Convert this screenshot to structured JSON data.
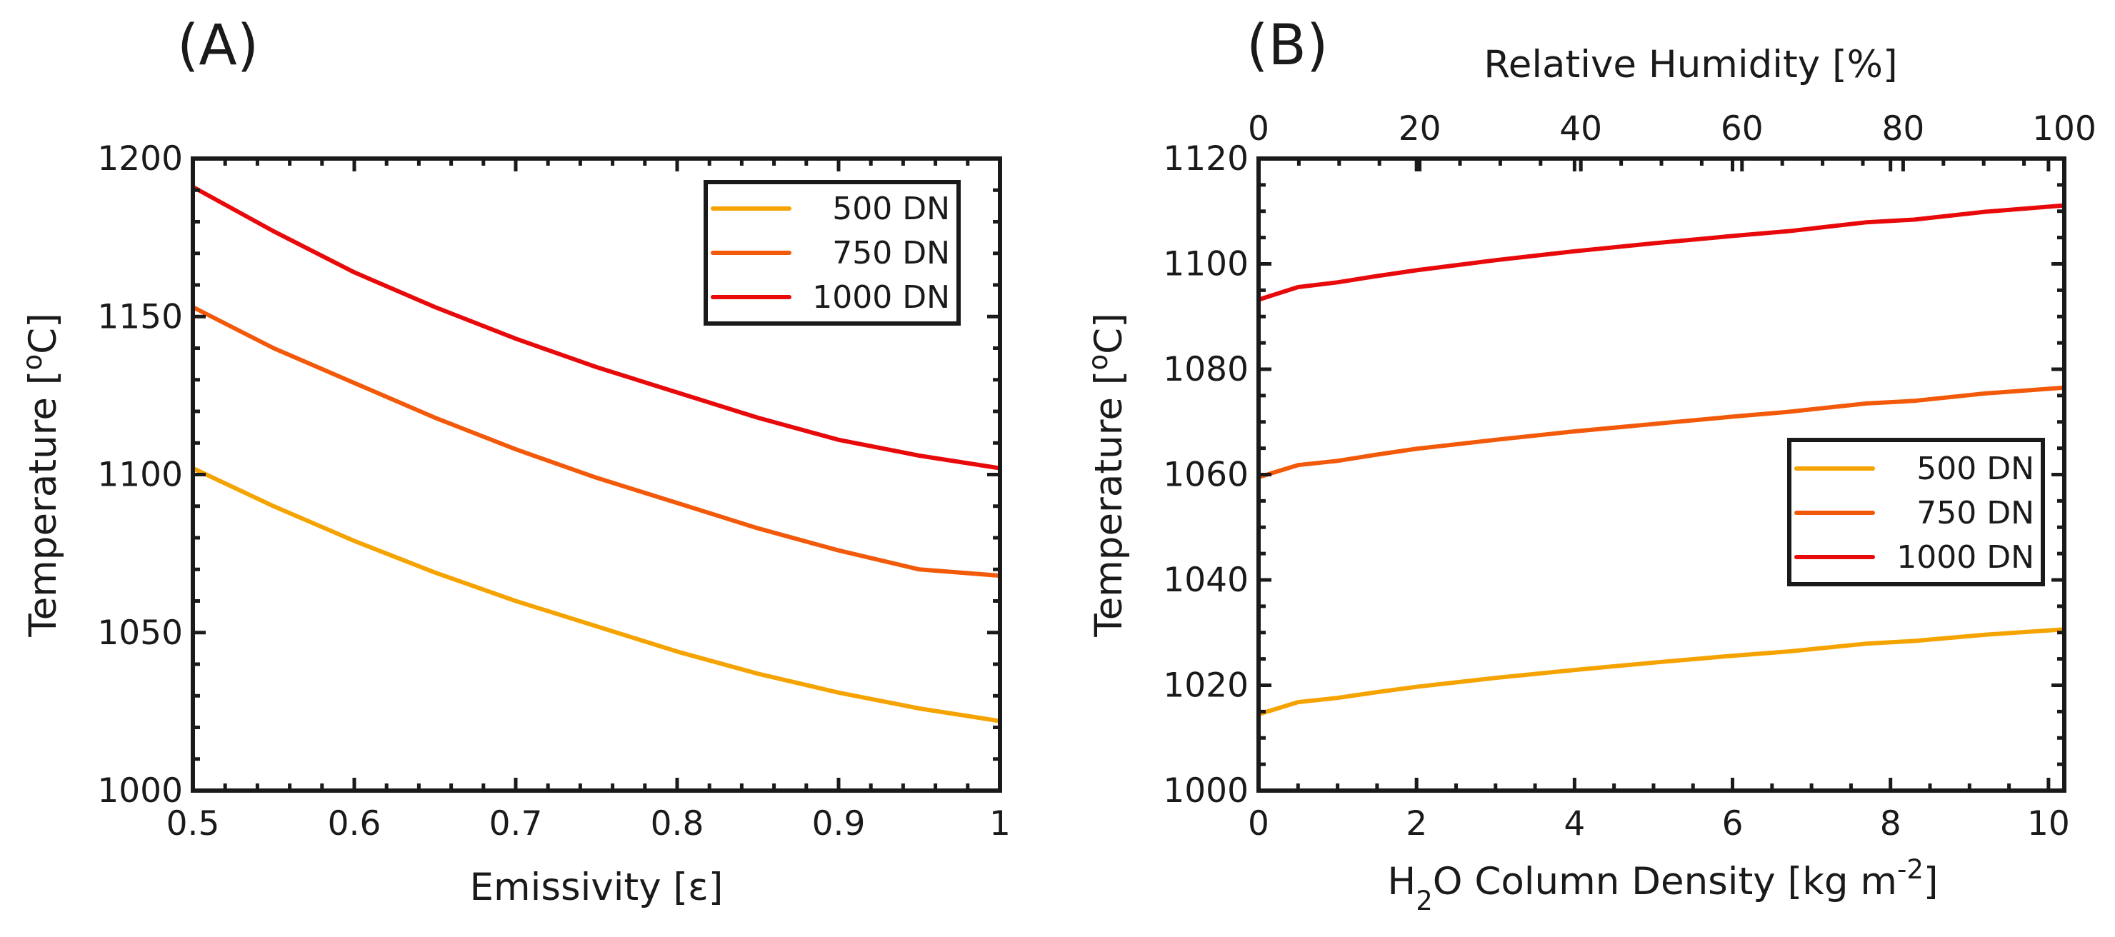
{
  "chart_data": [
    {
      "panel": "(A)",
      "type": "line",
      "xlabel": "Emissivity [ε]",
      "ylabel_parts": [
        "Temperature [",
        "o",
        "C]"
      ],
      "xlim": [
        0.5,
        1
      ],
      "ylim": [
        1000,
        1200
      ],
      "xticks": [
        0.5,
        0.6,
        0.7,
        0.8,
        0.9,
        1
      ],
      "xtick_labels": [
        "0.5",
        "0.6",
        "0.7",
        "0.8",
        "0.9",
        "1"
      ],
      "yticks": [
        1000,
        1050,
        1100,
        1150,
        1200
      ],
      "ytick_labels": [
        "1000",
        "1050",
        "1100",
        "1150",
        "1200"
      ],
      "legend_position": "top-right",
      "grid": false,
      "x": [
        0.5,
        0.55,
        0.6,
        0.65,
        0.7,
        0.75,
        0.8,
        0.85,
        0.9,
        0.95,
        1.0
      ],
      "series": [
        {
          "name": "500 DN",
          "color": "#f5a300",
          "values": [
            1102,
            1090,
            1079,
            1069,
            1060,
            1052,
            1044,
            1037,
            1031,
            1026,
            1022
          ]
        },
        {
          "name": "750 DN",
          "color": "#f25a0a",
          "values": [
            1153,
            1140,
            1129,
            1118,
            1108,
            1099,
            1091,
            1083,
            1076,
            1070,
            1068
          ]
        },
        {
          "name": "1000 DN",
          "color": "#e8090a",
          "values": [
            1191,
            1177,
            1164,
            1153,
            1143,
            1134,
            1126,
            1118,
            1111,
            1106,
            1102
          ]
        }
      ]
    },
    {
      "panel": "(B)",
      "type": "line",
      "xlabel_parts": [
        "H",
        "2",
        "O Column Density [kg m",
        "-2",
        "]"
      ],
      "ylabel_parts": [
        "Temperature [",
        "o",
        "C]"
      ],
      "top_xlabel": "Relative Humidity [%]",
      "xlim": [
        0,
        10.2
      ],
      "ylim": [
        1000,
        1120
      ],
      "xticks": [
        0,
        2,
        4,
        6,
        8,
        10
      ],
      "xtick_labels": [
        "0",
        "2",
        "4",
        "6",
        "8",
        "10"
      ],
      "yticks": [
        1000,
        1020,
        1040,
        1060,
        1080,
        1100,
        1120
      ],
      "ytick_labels": [
        "1000",
        "1020",
        "1040",
        "1060",
        "1080",
        "1100",
        "1120"
      ],
      "top_xlim": [
        0,
        100
      ],
      "top_xticks": [
        0,
        20,
        40,
        60,
        80,
        100
      ],
      "top_xtick_labels": [
        "0",
        "20",
        "40",
        "60",
        "80",
        "100"
      ],
      "legend_position": "middle-right",
      "grid": false,
      "x": [
        0,
        0.5,
        1,
        1.5,
        2,
        3,
        4,
        5,
        6,
        6.7,
        7.7,
        8.3,
        9.2,
        10.2
      ],
      "series": [
        {
          "name": "500 DN",
          "color": "#f5a300",
          "values": [
            1014.5,
            1016.8,
            1017.6,
            1018.7,
            1019.7,
            1021.4,
            1022.9,
            1024.3,
            1025.6,
            1026.4,
            1027.9,
            1028.4,
            1029.6,
            1030.6
          ]
        },
        {
          "name": "750 DN",
          "color": "#f25a0a",
          "values": [
            1059.5,
            1061.8,
            1062.6,
            1063.8,
            1064.9,
            1066.6,
            1068.2,
            1069.6,
            1071.0,
            1071.9,
            1073.5,
            1074.0,
            1075.4,
            1076.5
          ]
        },
        {
          "name": "1000 DN",
          "color": "#e8090a",
          "values": [
            1093.2,
            1095.6,
            1096.5,
            1097.7,
            1098.8,
            1100.7,
            1102.4,
            1103.9,
            1105.3,
            1106.2,
            1107.9,
            1108.4,
            1109.9,
            1111.1
          ]
        }
      ]
    }
  ]
}
